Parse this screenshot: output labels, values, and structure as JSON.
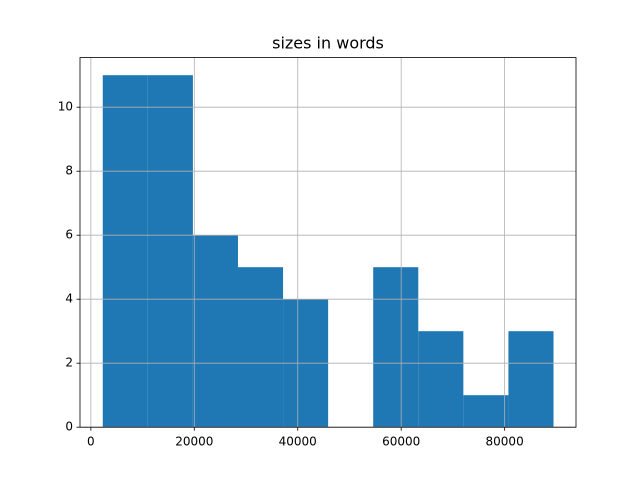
{
  "chart_data": {
    "type": "histogram",
    "title": "sizes in words",
    "bins": [
      2300,
      11015,
      19730,
      28445,
      37160,
      45875,
      54590,
      63305,
      72020,
      80735,
      89450
    ],
    "counts": [
      11,
      11,
      6,
      5,
      4,
      0,
      5,
      3,
      1,
      3
    ],
    "color": "#1f77b4",
    "xlim": [
      -2100,
      93800
    ],
    "xticks": [
      0,
      20000,
      40000,
      60000,
      80000
    ],
    "ylim": [
      0,
      11.55
    ],
    "yticks": [
      0,
      2,
      4,
      6,
      8,
      10
    ],
    "grid": true
  }
}
